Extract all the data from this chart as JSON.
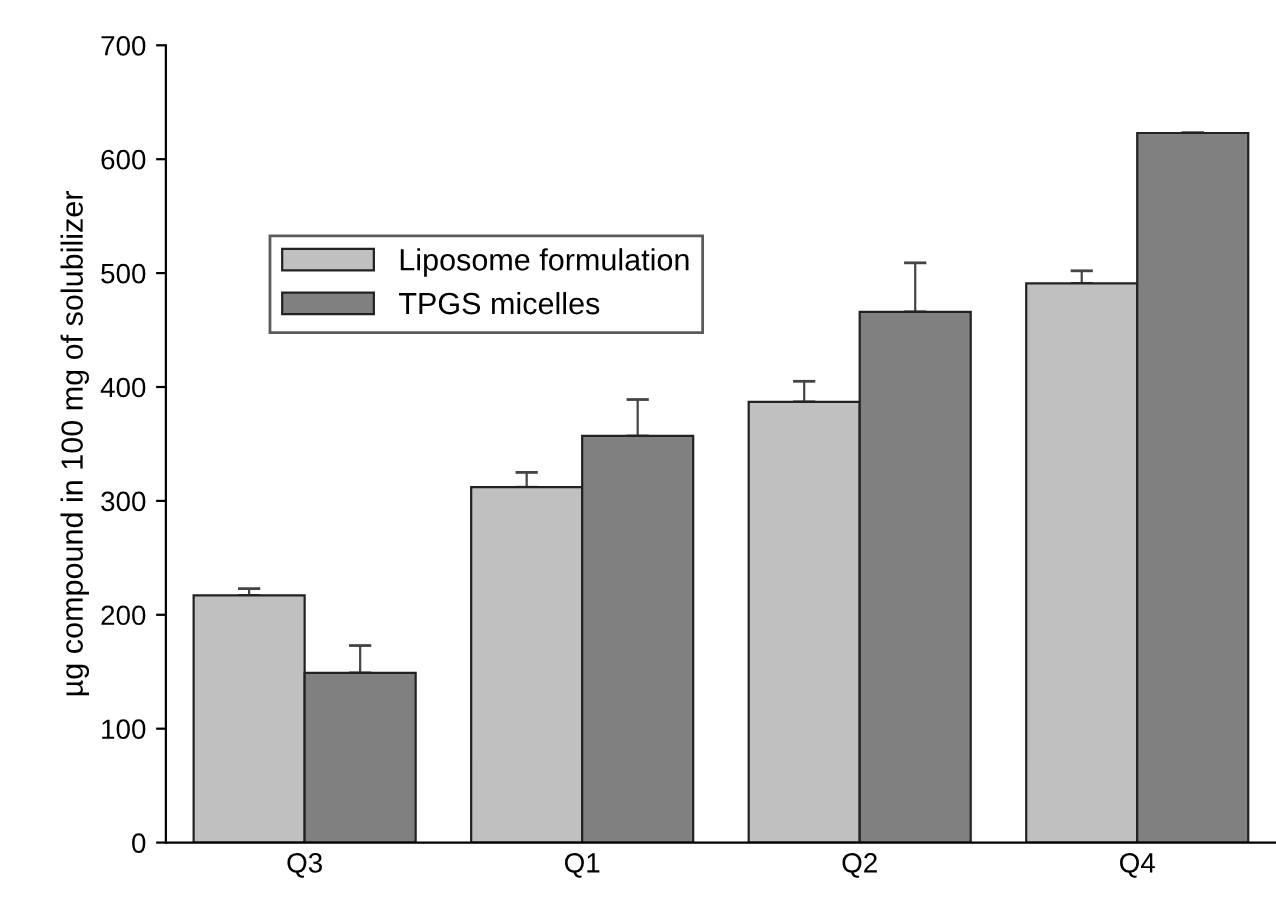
{
  "chart_data": {
    "type": "bar",
    "ylabel": "µg compound in 100 mg of solubilizer",
    "categories": [
      "Q3",
      "Q1",
      "Q2",
      "Q4"
    ],
    "series": [
      {
        "name": "Liposome formulation",
        "color": "#c0c0c0",
        "values": [
          217,
          312,
          387,
          491
        ],
        "errors": [
          [
            217,
            223
          ],
          [
            312,
            325
          ],
          [
            387,
            405
          ],
          [
            491,
            502
          ]
        ]
      },
      {
        "name": "TPGS micelles",
        "color": "#808080",
        "values": [
          149,
          357,
          466,
          623
        ],
        "errors": [
          [
            149,
            173
          ],
          [
            357,
            389
          ],
          [
            466,
            509
          ],
          [
            623,
            623
          ]
        ]
      }
    ],
    "ylim": [
      0,
      700
    ],
    "yticks": [
      0,
      100,
      200,
      300,
      400,
      500,
      600,
      700
    ],
    "grid": false,
    "legend": "top left"
  }
}
